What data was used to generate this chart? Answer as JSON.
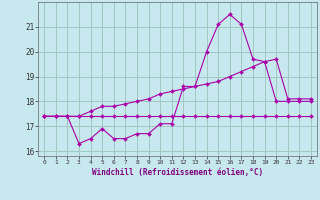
{
  "xlabel": "Windchill (Refroidissement éolien,°C)",
  "background_color": "#c8e8f0",
  "grid_color": "#a0c8c0",
  "line_color": "#aa00aa",
  "x_values": [
    0,
    1,
    2,
    3,
    4,
    5,
    6,
    7,
    8,
    9,
    10,
    11,
    12,
    13,
    14,
    15,
    16,
    17,
    18,
    19,
    20,
    21,
    22,
    23
  ],
  "series1": [
    17.4,
    17.4,
    17.4,
    17.4,
    17.4,
    17.4,
    17.4,
    17.4,
    17.4,
    17.4,
    17.4,
    17.4,
    17.4,
    17.4,
    17.4,
    17.4,
    17.4,
    17.4,
    17.4,
    17.4,
    17.4,
    17.4,
    17.4,
    17.4
  ],
  "series2": [
    17.4,
    17.4,
    17.4,
    16.3,
    16.5,
    16.9,
    16.5,
    16.5,
    16.7,
    16.7,
    17.1,
    17.1,
    18.6,
    18.6,
    20.0,
    21.1,
    21.5,
    21.1,
    19.7,
    19.6,
    18.0,
    18.0,
    18.0,
    18.0
  ],
  "series3": [
    17.4,
    17.4,
    17.4,
    17.4,
    17.6,
    17.8,
    17.8,
    17.9,
    18.0,
    18.1,
    18.3,
    18.4,
    18.5,
    18.6,
    18.7,
    18.8,
    19.0,
    19.2,
    19.4,
    19.6,
    19.7,
    18.1,
    18.1,
    18.1
  ],
  "ylim": [
    15.8,
    22.0
  ],
  "xlim": [
    -0.5,
    23.5
  ],
  "yticks": [
    16,
    17,
    18,
    19,
    20,
    21
  ],
  "xticks": [
    0,
    1,
    2,
    3,
    4,
    5,
    6,
    7,
    8,
    9,
    10,
    11,
    12,
    13,
    14,
    15,
    16,
    17,
    18,
    19,
    20,
    21,
    22,
    23
  ]
}
